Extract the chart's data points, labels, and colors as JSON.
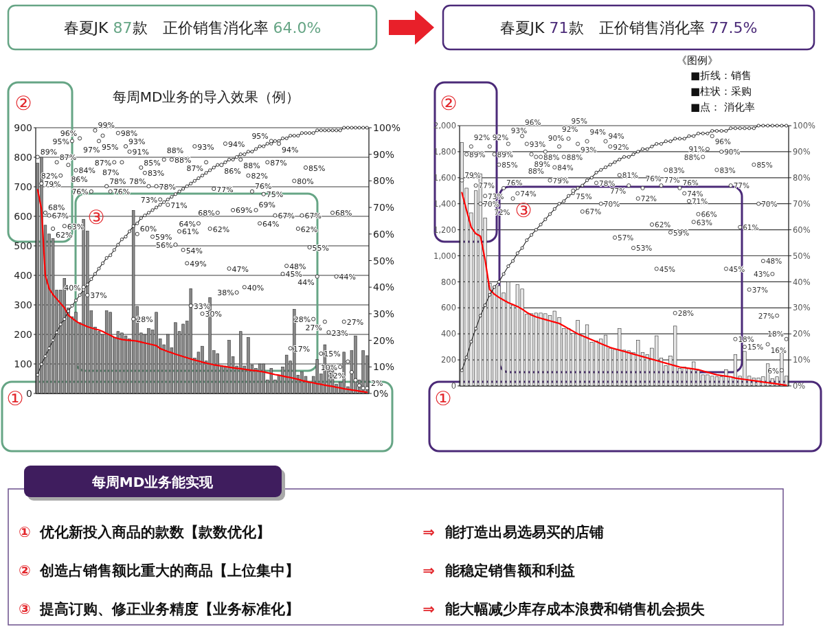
{
  "chart_data": [
    {
      "type": "bar",
      "title": "每周MD业务的导入效果（例）",
      "annotations": [
        "春夏JK 87款　正价销售消化率 64.0%",
        "②",
        "③",
        "①"
      ],
      "categories": [
        null,
        null,
        null,
        null,
        null,
        null,
        null,
        null,
        null,
        null,
        null,
        null,
        null,
        null,
        null,
        null,
        null,
        null,
        null,
        null,
        null,
        null,
        null,
        null,
        null,
        null,
        null,
        null,
        null,
        null,
        null,
        null,
        null,
        null,
        null,
        null,
        null,
        null,
        null,
        null,
        null,
        null,
        null,
        null,
        null,
        null,
        null,
        null,
        null,
        null,
        null,
        null,
        null,
        null,
        null,
        null,
        null,
        null,
        null,
        null,
        null,
        null,
        null,
        null,
        null,
        null,
        null,
        null,
        null,
        null,
        null,
        null,
        null,
        null,
        null,
        null,
        null,
        null,
        null,
        null,
        null,
        null,
        null,
        null,
        null,
        null,
        null
      ],
      "ylim": [
        0,
        900
      ],
      "yticks": [
        0,
        100,
        200,
        300,
        400,
        500,
        600,
        700,
        800,
        900
      ],
      "y2lim": [
        0,
        100
      ],
      "y2ticks": [
        {
          "value": 0,
          "label": "0%"
        },
        {
          "value": 10,
          "label": "10%"
        },
        {
          "value": 20,
          "label": "20%"
        },
        {
          "value": 30,
          "label": "30%"
        },
        {
          "value": 40,
          "label": "40%"
        },
        {
          "value": 50,
          "label": "50%"
        },
        {
          "value": 60,
          "label": "60%"
        },
        {
          "value": 70,
          "label": "70%"
        },
        {
          "value": 80,
          "label": "80%"
        },
        {
          "value": 90,
          "label": "90%"
        },
        {
          "value": 100,
          "label": "100%"
        }
      ],
      "grid": "y",
      "series": [
        {
          "type": "bar",
          "color": "#8a8a8a",
          "values": [
            780,
            800,
            570,
            540,
            525,
            350,
            350,
            390,
            290,
            260,
            275,
            240,
            590,
            550,
            280,
            225,
            210,
            200,
            280,
            275,
            190,
            210,
            205,
            195,
            185,
            620,
            295,
            205,
            200,
            220,
            215,
            275,
            185,
            165,
            200,
            155,
            240,
            210,
            235,
            245,
            355,
            120,
            140,
            160,
            110,
            325,
            145,
            135,
            95,
            93,
            180,
            125,
            93,
            210,
            93,
            190,
            97,
            85,
            100,
            100,
            46,
            85,
            46,
            62,
            90,
            130,
            110,
            285,
            62,
            73,
            58,
            39,
            58,
            115,
            66,
            165,
            88,
            85,
            31,
            39,
            140,
            23,
            145,
            195,
            46,
            145,
            128
          ]
        },
        {
          "type": "line",
          "color": "#ff0000",
          "values": [
            690,
            625,
            400,
            355,
            335,
            320,
            305,
            290,
            265,
            255,
            245,
            237,
            232,
            226,
            222,
            218,
            215,
            210,
            203,
            197,
            190,
            186,
            183,
            181,
            180,
            179,
            177,
            174,
            171,
            168,
            165,
            162,
            152,
            147,
            142,
            138,
            133,
            129,
            125,
            121,
            117,
            113,
            110,
            106,
            103,
            100,
            97,
            95,
            93,
            91,
            89,
            87,
            85,
            84,
            82,
            80,
            78,
            77,
            75,
            73,
            70,
            67,
            64,
            62,
            59,
            56,
            54,
            51,
            48,
            44,
            41,
            38,
            36,
            33,
            31,
            28,
            26,
            24,
            21,
            19,
            16,
            14,
            12,
            10,
            8,
            6,
            4
          ]
        },
        {
          "type": "line",
          "axis": "y2",
          "color": "#222222",
          "marker": "circle",
          "values": [
            7,
            11,
            14,
            17,
            20,
            23,
            26,
            28,
            31,
            33,
            35,
            37,
            39,
            41,
            43,
            45,
            47,
            49,
            51,
            52,
            54,
            56,
            58,
            59,
            61,
            63,
            64,
            66,
            67,
            68,
            69,
            70,
            71,
            72,
            73,
            74,
            75,
            76,
            77,
            78,
            79,
            80,
            81,
            82,
            83,
            84,
            85,
            86,
            86,
            87,
            88,
            88,
            89,
            90,
            90,
            91,
            91,
            92,
            93,
            93,
            94,
            94,
            95,
            95,
            96,
            96,
            97,
            97,
            97,
            98,
            98,
            98,
            98,
            99,
            99,
            99,
            99,
            99,
            99,
            99,
            100,
            100,
            100,
            100,
            100,
            100,
            100
          ]
        },
        {
          "type": "scatter",
          "axis": "y2",
          "color": "#222222",
          "marker": "circle",
          "values": [
            89,
            79,
            68,
            67,
            62,
            87,
            82,
            63,
            86,
            95,
            84,
            96,
            40,
            37,
            76,
            99,
            95,
            97,
            78,
            76,
            87,
            98,
            87,
            93,
            91,
            28,
            60,
            85,
            83,
            78,
            59,
            78,
            73,
            88,
            71,
            88,
            56,
            61,
            54,
            49,
            33,
            93,
            64,
            30,
            87,
            62,
            77,
            68,
            86,
            94,
            47,
            69,
            38,
            88,
            40,
            82,
            76,
            69,
            64,
            75,
            87,
            95,
            67,
            94,
            45,
            48,
            17,
            80,
            62,
            67,
            85,
            55,
            28,
            44,
            15,
            27,
            23,
            68,
            44,
            10,
            27,
            12,
            8,
            5,
            3,
            2,
            2
          ],
          "value_labels": [
            "89%",
            "79%",
            "68%",
            "67%",
            "62%",
            "87%",
            "82%",
            "63%",
            "86%",
            "95%",
            "84%",
            "96%",
            "40%",
            "37%",
            "76%",
            "99%",
            "95%",
            "97%",
            "78%",
            "76%",
            "87%",
            "98%",
            "87%",
            "93%",
            "91%",
            "28%",
            "60%",
            "85%",
            "83%",
            "78%",
            "59%",
            "78%",
            "73%",
            "88%",
            "71%",
            "88%",
            "56%",
            "61%",
            "54%",
            "49%",
            "33%",
            "93%",
            "64%",
            "30%",
            "87%",
            "62%",
            "77%",
            "68%",
            "86%",
            "94%",
            "47%",
            "69%",
            "38%",
            "88%",
            "40%",
            "82%",
            "76%",
            "69%",
            "64%",
            "75%",
            "87%",
            "95%",
            "67%",
            "94%",
            "45%",
            "48%",
            "17%",
            "80%",
            "62%",
            "67%",
            "85%",
            "55%",
            "28%",
            "44%",
            "15%",
            "27%",
            "23%",
            "68%",
            "44%",
            "10%",
            "27%",
            "12%",
            null,
            null,
            null,
            null,
            "2%"
          ]
        }
      ]
    },
    {
      "type": "bar",
      "annotations": [
        "春夏JK 71款　正价销售消化率 77.5%",
        "《图例》",
        "■折线：销售",
        "■柱状：采购",
        "■点： 消化率",
        "②",
        "③",
        "①"
      ],
      "categories": [
        null,
        null,
        null,
        null,
        null,
        null,
        null,
        null,
        null,
        null,
        null,
        null,
        null,
        null,
        null,
        null,
        null,
        null,
        null,
        null,
        null,
        null,
        null,
        null,
        null,
        null,
        null,
        null,
        null,
        null,
        null,
        null,
        null,
        null,
        null,
        null,
        null,
        null,
        null,
        null,
        null,
        null,
        null,
        null,
        null,
        null,
        null,
        null,
        null,
        null,
        null,
        null,
        null,
        null,
        null,
        null,
        null,
        null,
        null,
        null,
        null,
        null,
        null,
        null,
        null,
        null,
        null,
        null,
        null,
        null,
        null
      ],
      "ylim": [
        0,
        2000
      ],
      "yticks": [
        0,
        200,
        400,
        600,
        800,
        {
          "value": 1000,
          "label": "1,000"
        },
        {
          "value": 1200,
          "label": "1,200"
        },
        {
          "value": 1400,
          "label": "1,400"
        },
        {
          "value": 1600,
          "label": "1,600"
        },
        {
          "value": 1800,
          "label": "1,800"
        },
        {
          "value": 2000,
          "label": "2,000"
        }
      ],
      "y2lim": [
        0,
        100
      ],
      "y2ticks": [
        {
          "value": 0,
          "label": "0%"
        },
        {
          "value": 10,
          "label": "10%"
        },
        {
          "value": 20,
          "label": "20%"
        },
        {
          "value": 30,
          "label": "30%"
        },
        {
          "value": 40,
          "label": "40%"
        },
        {
          "value": 50,
          "label": "50%"
        },
        {
          "value": 60,
          "label": "60%"
        },
        {
          "value": 70,
          "label": "70%"
        },
        {
          "value": 80,
          "label": "80%"
        },
        {
          "value": 90,
          "label": "90%"
        },
        {
          "value": 100,
          "label": "100%"
        }
      ],
      "grid": "y",
      "series": [
        {
          "type": "bar",
          "color": "#e6e6e6",
          "values": [
            1870,
            1520,
            1330,
            1500,
            1630,
            1290,
            790,
            765,
            770,
            715,
            800,
            620,
            780,
            745,
            550,
            555,
            560,
            560,
            555,
            540,
            575,
            525,
            440,
            440,
            405,
            505,
            385,
            470,
            335,
            345,
            360,
            390,
            290,
            280,
            440,
            275,
            270,
            255,
            350,
            255,
            240,
            290,
            385,
            215,
            155,
            230,
            460,
            135,
            145,
            135,
            185,
            120,
            85,
            85,
            75,
            70,
            70,
            125,
            70,
            240,
            75,
            265,
            75,
            60,
            60,
            70,
            170,
            55,
            70,
            250,
            75
          ]
        },
        {
          "type": "line",
          "color": "#ff0000",
          "values": [
            1485,
            1350,
            1220,
            1170,
            1150,
            970,
            740,
            705,
            680,
            660,
            640,
            625,
            610,
            590,
            565,
            545,
            530,
            520,
            510,
            500,
            490,
            480,
            460,
            440,
            420,
            400,
            385,
            370,
            355,
            340,
            325,
            310,
            295,
            285,
            275,
            265,
            255,
            245,
            235,
            225,
            215,
            205,
            195,
            185,
            175,
            165,
            155,
            145,
            140,
            135,
            130,
            125,
            115,
            105,
            95,
            85,
            80,
            75,
            70,
            60,
            55,
            50,
            45,
            40,
            35,
            30,
            25,
            20,
            15,
            10,
            5
          ]
        },
        {
          "type": "line",
          "axis": "y2",
          "color": "#222222",
          "marker": "circle",
          "values": [
            6,
            11,
            17,
            22,
            27,
            31,
            35,
            38,
            40,
            43,
            46,
            48,
            51,
            53,
            56,
            58,
            60,
            62,
            64,
            66,
            68,
            70,
            71,
            73,
            74,
            76,
            77,
            79,
            80,
            82,
            83,
            84,
            85,
            86,
            87,
            88,
            88,
            89,
            90,
            91,
            91,
            92,
            93,
            93,
            94,
            94,
            95,
            95,
            95,
            96,
            96,
            97,
            97,
            97,
            98,
            98,
            98,
            98,
            99,
            99,
            99,
            99,
            99,
            99,
            100,
            100,
            100,
            100,
            100,
            100,
            100
          ]
        },
        {
          "type": "scatter",
          "axis": "y2",
          "color": "#333333",
          "marker": "circle",
          "values": [
            79,
            89,
            92,
            77,
            70,
            73,
            92,
            89,
            85,
            76,
            93,
            72,
            74,
            96,
            93,
            89,
            88,
            88,
            90,
            79,
            84,
            92,
            88,
            95,
            75,
            93,
            67,
            94,
            null,
            78,
            70,
            94,
            92,
            57,
            81,
            null,
            77,
            53,
            72,
            76,
            null,
            62,
            45,
            77,
            83,
            59,
            28,
            76,
            74,
            71,
            63,
            66,
            88,
            91,
            96,
            83,
            90,
            45,
            77,
            18,
            61,
            15,
            37,
            85,
            70,
            48,
            16,
            43,
            27,
            6,
            18
          ],
          "value_labels": [
            "79%",
            "89%",
            "92%",
            "77%",
            "70%",
            "73%",
            "92%",
            "89%",
            "85%",
            "76%",
            "93%",
            "72%",
            "74%",
            "96%",
            "93%",
            "89%",
            "88%",
            "88%",
            "90%",
            "79%",
            "84%",
            "92%",
            "88%",
            "95%",
            "75%",
            "93%",
            "67%",
            "94%",
            null,
            "78%",
            "70%",
            "94%",
            "92%",
            "57%",
            "81%",
            null,
            "77%",
            "53%",
            "72%",
            "76%",
            null,
            "62%",
            "45%",
            "77%",
            "83%",
            "59%",
            "28%",
            "76%",
            "74%",
            "71%",
            "63%",
            "66%",
            "88%",
            "91%",
            "96%",
            "83%",
            "90%",
            "45%",
            "77%",
            "18%",
            "61%",
            "15%",
            "37%",
            "85%",
            "70%",
            "48%",
            "16%",
            "43%",
            "27%",
            "6%",
            "18%"
          ]
        }
      ]
    },
    {
      "type": "other",
      "title": "每周MD业务能实现",
      "annotations": [
        "①",
        "优化新投入商品的款数【款数优化】",
        "⇒",
        "能打造出易选易买的店铺",
        "②",
        "创造占销售额比重大的商品【上位集中】",
        "⇒",
        "能稳定销售额和利益",
        "③",
        "提高订购、修正业务精度【业务标准化】",
        "⇒",
        "能大幅减少库存成本浪费和销售机会损失"
      ]
    }
  ]
}
